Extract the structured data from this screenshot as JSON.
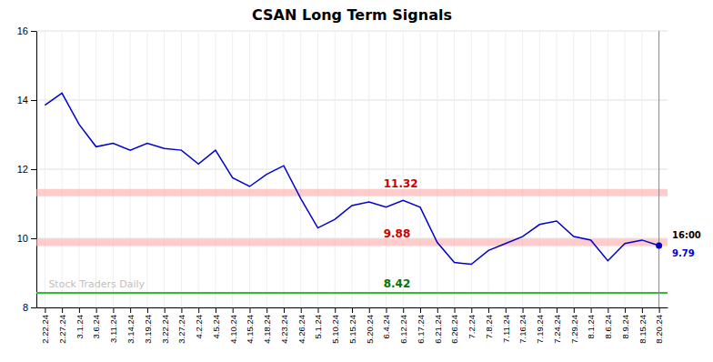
{
  "chart_data": {
    "type": "line",
    "title": "CSAN Long Term Signals",
    "categories": [
      "2.22.24",
      "2.27.24",
      "3.1.24",
      "3.6.24",
      "3.11.24",
      "3.14.24",
      "3.19.24",
      "3.22.24",
      "3.27.24",
      "4.2.24",
      "4.5.24",
      "4.10.24",
      "4.15.24",
      "4.18.24",
      "4.23.24",
      "4.26.24",
      "5.1.24",
      "5.10.24",
      "5.15.24",
      "5.20.24",
      "6.4.24",
      "6.12.24",
      "6.17.24",
      "6.21.24",
      "6.26.24",
      "7.2.24",
      "7.8.24",
      "7.11.24",
      "7.16.24",
      "7.19.24",
      "7.24.24",
      "7.29.24",
      "8.1.24",
      "8.6.24",
      "8.9.24",
      "8.15.24",
      "8.20.24"
    ],
    "values": [
      13.85,
      14.2,
      13.3,
      12.65,
      12.75,
      12.55,
      12.75,
      12.6,
      12.55,
      12.15,
      12.55,
      11.75,
      11.5,
      11.85,
      12.1,
      11.15,
      10.3,
      10.55,
      10.95,
      11.05,
      10.9,
      11.1,
      10.9,
      9.88,
      9.3,
      9.25,
      9.65,
      9.85,
      10.05,
      10.4,
      10.5,
      10.05,
      9.95,
      9.35,
      9.85,
      9.95,
      9.79
    ],
    "color": "#0000cc",
    "ylim": [
      8.0,
      16.0
    ],
    "yticks": [
      8,
      10,
      12,
      14,
      16
    ],
    "grid": true,
    "reference_lines": [
      {
        "value": 11.32,
        "label": "11.32",
        "color": "#ffaaaa",
        "label_color": "#cc0000"
      },
      {
        "value": 9.88,
        "label": "9.88",
        "color": "#ffaaaa",
        "label_color": "#cc0000"
      },
      {
        "value": 8.42,
        "label": "8.42",
        "color": "#33bb33",
        "label_color": "#007700"
      }
    ],
    "annotations": [
      "16:00",
      "9.79"
    ],
    "watermark": "Stock Traders Daily"
  }
}
